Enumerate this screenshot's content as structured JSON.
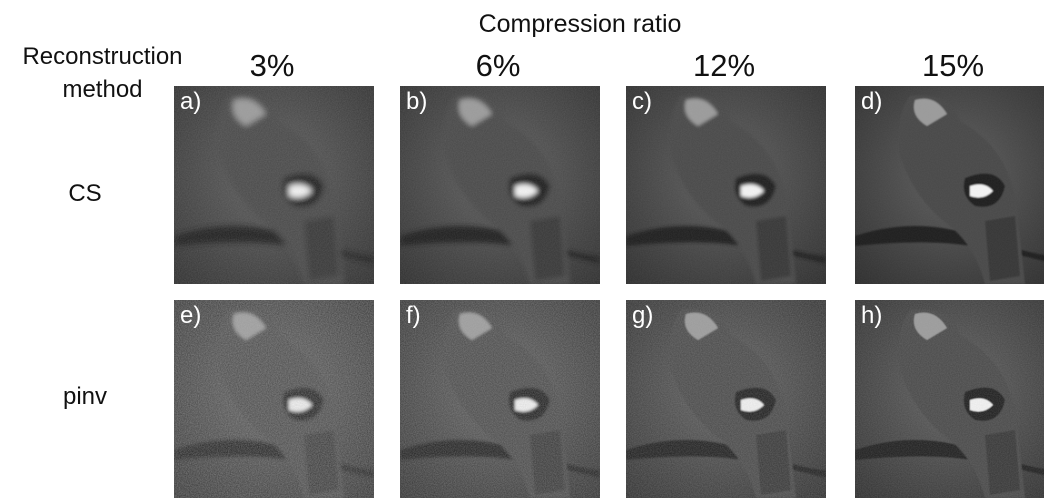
{
  "header": {
    "title": "Compression ratio",
    "row_header": "Reconstruction method"
  },
  "columns": [
    "3%",
    "6%",
    "12%",
    "15%"
  ],
  "rows": [
    {
      "label": "CS",
      "panels": [
        "a)",
        "b)",
        "c)",
        "d)"
      ]
    },
    {
      "label": "pinv",
      "panels": [
        "e)",
        "f)",
        "g)",
        "h)"
      ]
    }
  ]
}
